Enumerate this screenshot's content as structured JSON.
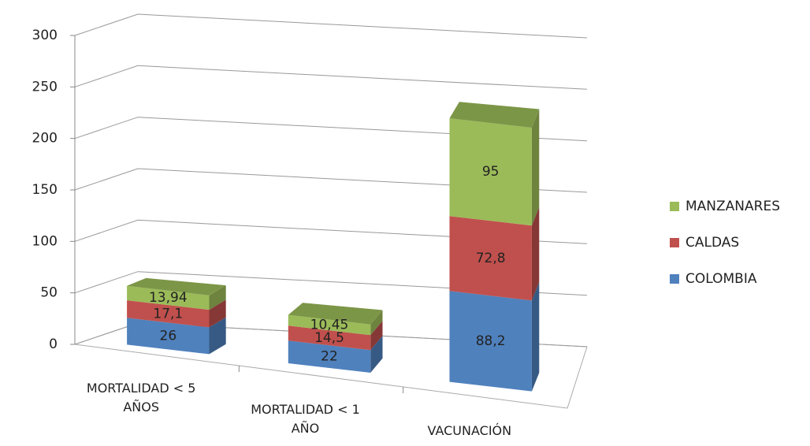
{
  "chart_data": {
    "type": "bar3d_stacked",
    "categories": [
      "MORTALIDAD < 5 AÑOS",
      "MORTALIDAD < 1 AÑO",
      "VACUNACIÓN"
    ],
    "series": [
      {
        "name": "COLOMBIA",
        "color": "#4f81bd",
        "values": [
          26,
          22,
          88.2
        ],
        "value_labels": [
          "26",
          "22",
          "88,2"
        ]
      },
      {
        "name": "CALDAS",
        "color": "#c0504d",
        "values": [
          17.1,
          14.5,
          72.8
        ],
        "value_labels": [
          "17,1",
          "14,5",
          "72,8"
        ]
      },
      {
        "name": "MANZANARES",
        "color": "#9bbb59",
        "values": [
          13.94,
          10.45,
          95
        ],
        "value_labels": [
          "13,94",
          "10,45",
          "95"
        ]
      }
    ],
    "ylim": [
      0,
      300
    ],
    "yticks": [
      0,
      50,
      100,
      150,
      200,
      250,
      300
    ],
    "grid": true,
    "legend": "right"
  }
}
